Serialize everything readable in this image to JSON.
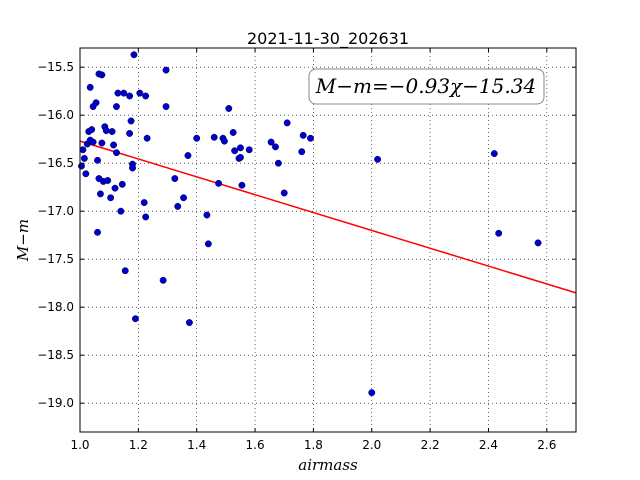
{
  "chart_data": {
    "type": "scatter",
    "title": "2021-11-30_202631",
    "xlabel": "airmass",
    "ylabel": "M−m",
    "xlim": [
      1.0,
      2.7
    ],
    "ylim": [
      -19.3,
      -15.3
    ],
    "y_inverted": true,
    "grid": true,
    "x_ticks": [
      1.0,
      1.2,
      1.4,
      1.6,
      1.8,
      2.0,
      2.2,
      2.4,
      2.6
    ],
    "x_tick_labels": [
      "1.0",
      "1.2",
      "1.4",
      "1.6",
      "1.8",
      "2.0",
      "2.2",
      "2.4",
      "2.6"
    ],
    "y_ticks": [
      -15.5,
      -16.0,
      -16.5,
      -17.0,
      -17.5,
      -18.0,
      -18.5,
      -19.0
    ],
    "y_tick_labels": [
      "−15.5",
      "−16.0",
      "−16.5",
      "−17.0",
      "−17.5",
      "−18.0",
      "−18.5",
      "−19.0"
    ],
    "annotation": "M−m=−0.93χ−15.34",
    "fit": {
      "slope": -0.93,
      "intercept": -15.34,
      "color": "#ff0000"
    },
    "point_color": "#0000cc",
    "points": [
      [
        1.005,
        -16.53
      ],
      [
        1.01,
        -16.36
      ],
      [
        1.015,
        -16.45
      ],
      [
        1.02,
        -16.61
      ],
      [
        1.025,
        -16.3
      ],
      [
        1.03,
        -16.17
      ],
      [
        1.035,
        -16.26
      ],
      [
        1.04,
        -16.15
      ],
      [
        1.045,
        -16.28
      ],
      [
        1.035,
        -15.71
      ],
      [
        1.045,
        -15.91
      ],
      [
        1.055,
        -15.87
      ],
      [
        1.06,
        -16.47
      ],
      [
        1.065,
        -16.66
      ],
      [
        1.065,
        -15.57
      ],
      [
        1.075,
        -15.58
      ],
      [
        1.07,
        -16.82
      ],
      [
        1.08,
        -16.69
      ],
      [
        1.075,
        -16.29
      ],
      [
        1.085,
        -16.12
      ],
      [
        1.09,
        -16.16
      ],
      [
        1.095,
        -16.68
      ],
      [
        1.06,
        -17.22
      ],
      [
        1.105,
        -16.86
      ],
      [
        1.11,
        -16.17
      ],
      [
        1.115,
        -16.31
      ],
      [
        1.12,
        -16.76
      ],
      [
        1.125,
        -16.39
      ],
      [
        1.125,
        -15.91
      ],
      [
        1.13,
        -15.77
      ],
      [
        1.14,
        -17.0
      ],
      [
        1.145,
        -16.72
      ],
      [
        1.15,
        -15.77
      ],
      [
        1.155,
        -17.62
      ],
      [
        1.17,
        -15.8
      ],
      [
        1.17,
        -16.19
      ],
      [
        1.175,
        -16.06
      ],
      [
        1.18,
        -16.51
      ],
      [
        1.18,
        -16.55
      ],
      [
        1.185,
        -15.37
      ],
      [
        1.19,
        -18.12
      ],
      [
        1.205,
        -15.77
      ],
      [
        1.22,
        -16.91
      ],
      [
        1.225,
        -15.8
      ],
      [
        1.225,
        -17.06
      ],
      [
        1.23,
        -16.24
      ],
      [
        1.285,
        -17.72
      ],
      [
        1.295,
        -15.53
      ],
      [
        1.295,
        -15.91
      ],
      [
        1.325,
        -16.66
      ],
      [
        1.335,
        -16.95
      ],
      [
        1.355,
        -16.86
      ],
      [
        1.37,
        -16.42
      ],
      [
        1.375,
        -18.16
      ],
      [
        1.4,
        -16.24
      ],
      [
        1.435,
        -17.04
      ],
      [
        1.44,
        -17.34
      ],
      [
        1.46,
        -16.23
      ],
      [
        1.475,
        -16.71
      ],
      [
        1.49,
        -16.24
      ],
      [
        1.495,
        -16.27
      ],
      [
        1.51,
        -15.93
      ],
      [
        1.525,
        -16.18
      ],
      [
        1.53,
        -16.37
      ],
      [
        1.545,
        -16.45
      ],
      [
        1.55,
        -16.34
      ],
      [
        1.55,
        -16.44
      ],
      [
        1.555,
        -16.73
      ],
      [
        1.58,
        -16.36
      ],
      [
        1.655,
        -16.28
      ],
      [
        1.67,
        -16.33
      ],
      [
        1.68,
        -16.5
      ],
      [
        1.7,
        -16.81
      ],
      [
        1.71,
        -16.08
      ],
      [
        1.76,
        -16.38
      ],
      [
        1.765,
        -16.21
      ],
      [
        1.79,
        -16.24
      ],
      [
        2.0,
        -18.89
      ],
      [
        2.02,
        -16.46
      ],
      [
        2.42,
        -16.4
      ],
      [
        2.435,
        -17.23
      ],
      [
        2.57,
        -17.33
      ]
    ]
  }
}
